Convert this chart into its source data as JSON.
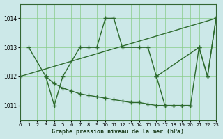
{
  "background_color": "#cce8e8",
  "line_color": "#2d6a2d",
  "grid_color": "#88cc88",
  "title": "Graphe pression niveau de la mer (hPa)",
  "xlim": [
    0,
    23
  ],
  "ylim": [
    1010.5,
    1014.5
  ],
  "yticks": [
    1011,
    1012,
    1013,
    1014
  ],
  "xticks": [
    0,
    1,
    2,
    3,
    4,
    5,
    6,
    7,
    8,
    9,
    10,
    11,
    12,
    13,
    14,
    15,
    16,
    17,
    18,
    19,
    20,
    21,
    22,
    23
  ],
  "line1_x": [
    0,
    23
  ],
  "line1_y": [
    1012.0,
    1014.0
  ],
  "line2_x": [
    1,
    3,
    4,
    5,
    7,
    8,
    9,
    10,
    11,
    12,
    14,
    15,
    16,
    21,
    22,
    23
  ],
  "line2_y": [
    1013,
    1012,
    1011,
    1012,
    1013,
    1013,
    1013,
    1014,
    1014,
    1013,
    1013,
    1013,
    1012,
    1013,
    1012,
    1014
  ],
  "line3_x": [
    3,
    4,
    5,
    6,
    7,
    8,
    9,
    10,
    11,
    12,
    13,
    14,
    15,
    16,
    17,
    18,
    19,
    20
  ],
  "line3_y": [
    1012.0,
    1011.75,
    1011.6,
    1011.5,
    1011.4,
    1011.35,
    1011.3,
    1011.25,
    1011.2,
    1011.15,
    1011.1,
    1011.1,
    1011.05,
    1011.0,
    1011.0,
    1011.0,
    1011.0,
    1011.0
  ],
  "line4_x": [
    16,
    17,
    18,
    19,
    20,
    21,
    22,
    23
  ],
  "line4_y": [
    1012.0,
    1011.0,
    1011.0,
    1011.0,
    1011.0,
    1013.0,
    1012.0,
    1014.0
  ],
  "lw": 1.0,
  "ms": 4.5
}
